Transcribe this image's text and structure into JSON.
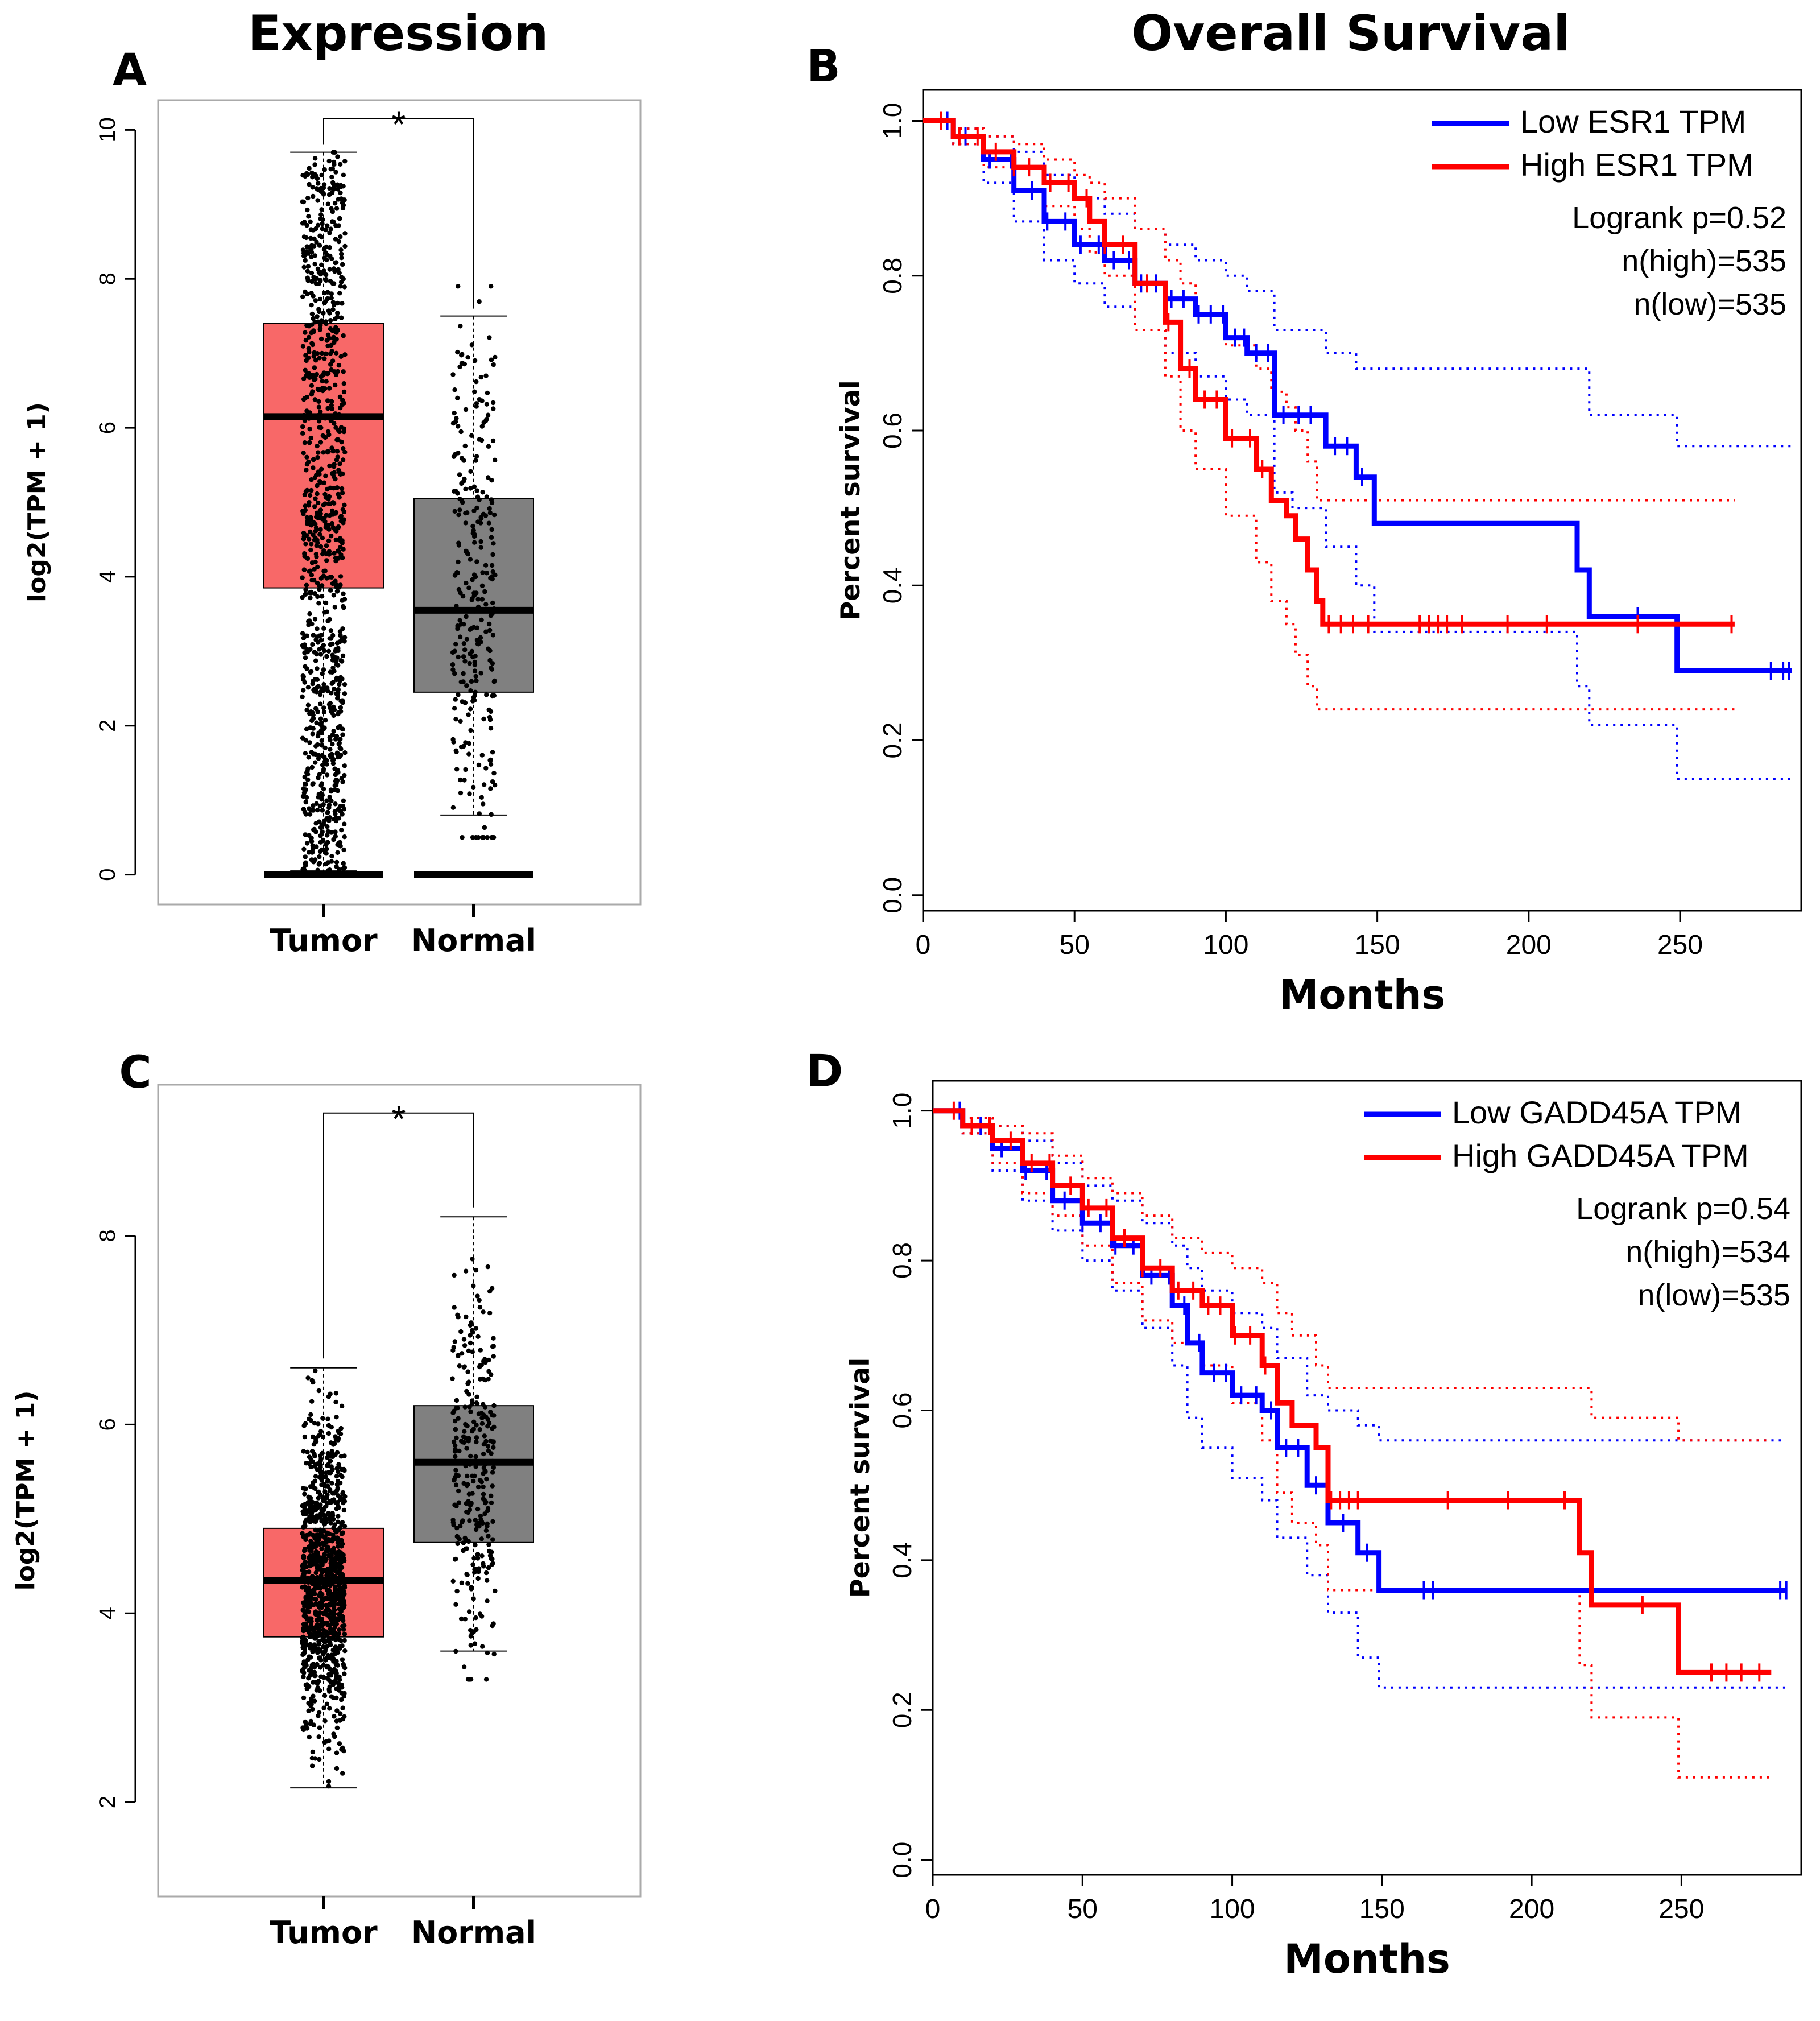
{
  "titles": {
    "expression": "Expression",
    "overall_survival": "Overall Survival"
  },
  "panel_labels": {
    "a": "A",
    "b": "B",
    "c": "C",
    "d": "D"
  },
  "colors": {
    "tumor_box": "#f86868",
    "normal_box": "#808080",
    "low_line": "#0000ff",
    "high_line": "#ff0000",
    "significance": "#ff0000"
  },
  "chart_data": [
    {
      "id": "A",
      "type": "box",
      "title": "Expression",
      "ylabel": "log2(TPM + 1)",
      "ylim": [
        -0.4,
        10.4
      ],
      "yticks": [
        "0",
        "2",
        "4",
        "6",
        "8",
        "10"
      ],
      "categories": [
        "Tumor",
        "Normal"
      ],
      "boxes": [
        {
          "name": "Tumor",
          "q1": 3.85,
          "median": 6.15,
          "q3": 7.4,
          "whisker_low": 0.05,
          "whisker_high": 9.7,
          "n_points": 1000
        },
        {
          "name": "Normal",
          "q1": 2.45,
          "median": 3.55,
          "q3": 5.05,
          "whisker_low": 0.8,
          "whisker_high": 7.5,
          "n_points": 290
        }
      ],
      "zero_bar": true,
      "bracket_y": 10.15,
      "significance": "*"
    },
    {
      "id": "B",
      "type": "line",
      "title": "Overall Survival",
      "xlabel": "Months",
      "ylabel": "Percent survival",
      "xlim": [
        0,
        290
      ],
      "ylim": [
        -0.02,
        1.04
      ],
      "xticks": [
        "0",
        "50",
        "100",
        "150",
        "200",
        "250"
      ],
      "yticks": [
        "0.0",
        "0.2",
        "0.4",
        "0.6",
        "0.8",
        "1.0"
      ],
      "legend": {
        "location": "top-right",
        "entries": [
          "Low ESR1 TPM",
          "High ESR1 TPM"
        ],
        "stats": [
          "Logrank p=0.52",
          "n(high)=535",
          "n(low)=535"
        ]
      },
      "series": [
        {
          "name": "Low ESR1 TPM",
          "color": "blue",
          "x": [
            0,
            10,
            20,
            30,
            40,
            50,
            60,
            70,
            80,
            90,
            100,
            107,
            116,
            122,
            133,
            143,
            149,
            190,
            216,
            220,
            235,
            249,
            270,
            287
          ],
          "y": [
            1.0,
            0.98,
            0.95,
            0.91,
            0.87,
            0.84,
            0.82,
            0.79,
            0.77,
            0.75,
            0.72,
            0.7,
            0.62,
            0.62,
            0.58,
            0.54,
            0.48,
            0.48,
            0.42,
            0.36,
            0.36,
            0.29,
            0.29,
            0.29
          ],
          "upper": [
            1.0,
            0.99,
            0.98,
            0.96,
            0.93,
            0.9,
            0.88,
            0.86,
            0.84,
            0.82,
            0.8,
            0.78,
            0.73,
            0.73,
            0.7,
            0.68,
            0.68,
            0.68,
            0.68,
            0.62,
            0.62,
            0.58,
            0.58,
            0.58
          ],
          "lower": [
            1.0,
            0.97,
            0.92,
            0.87,
            0.82,
            0.79,
            0.76,
            0.73,
            0.7,
            0.67,
            0.64,
            0.62,
            0.52,
            0.5,
            0.45,
            0.4,
            0.34,
            0.34,
            0.27,
            0.22,
            0.22,
            0.15,
            0.15,
            0.15
          ],
          "censor_x": [
            8,
            14,
            22,
            29,
            36,
            41,
            47,
            52,
            58,
            63,
            68,
            72,
            77,
            82,
            86,
            91,
            95,
            99,
            103,
            106,
            110,
            114,
            119,
            124,
            128,
            136,
            140,
            145,
            236,
            280,
            284,
            286
          ]
        },
        {
          "name": "High ESR1 TPM",
          "color": "red",
          "x": [
            0,
            10,
            20,
            30,
            40,
            50,
            55,
            60,
            70,
            80,
            85,
            90,
            100,
            110,
            115,
            120,
            123,
            127,
            130,
            132,
            150,
            200,
            250,
            268
          ],
          "y": [
            1.0,
            0.98,
            0.96,
            0.94,
            0.92,
            0.9,
            0.87,
            0.84,
            0.79,
            0.74,
            0.68,
            0.64,
            0.59,
            0.55,
            0.51,
            0.49,
            0.46,
            0.42,
            0.38,
            0.35,
            0.35,
            0.35,
            0.35,
            0.35
          ],
          "upper": [
            1.0,
            0.99,
            0.98,
            0.97,
            0.95,
            0.93,
            0.92,
            0.9,
            0.86,
            0.82,
            0.79,
            0.75,
            0.71,
            0.68,
            0.65,
            0.63,
            0.6,
            0.56,
            0.51,
            0.51,
            0.51,
            0.51,
            0.51,
            0.51
          ],
          "lower": [
            1.0,
            0.97,
            0.94,
            0.91,
            0.89,
            0.86,
            0.83,
            0.8,
            0.73,
            0.67,
            0.6,
            0.55,
            0.49,
            0.43,
            0.38,
            0.35,
            0.31,
            0.27,
            0.24,
            0.24,
            0.24,
            0.24,
            0.24,
            0.24
          ],
          "censor_x": [
            6,
            12,
            18,
            24,
            30,
            35,
            42,
            48,
            54,
            60,
            66,
            74,
            81,
            88,
            93,
            97,
            102,
            108,
            112,
            134,
            138,
            142,
            147,
            164,
            167,
            170,
            173,
            178,
            193,
            206,
            236,
            267
          ]
        }
      ]
    },
    {
      "id": "C",
      "type": "box",
      "title": "",
      "ylabel": "log2(TPM + 1)",
      "ylim": [
        1.0,
        9.6
      ],
      "yticks": [
        "2",
        "4",
        "6",
        "8"
      ],
      "categories": [
        "Tumor",
        "Normal"
      ],
      "boxes": [
        {
          "name": "Tumor",
          "q1": 3.75,
          "median": 4.35,
          "q3": 4.9,
          "whisker_low": 2.15,
          "whisker_high": 6.6,
          "n_points": 1000
        },
        {
          "name": "Normal",
          "q1": 4.75,
          "median": 5.6,
          "q3": 6.2,
          "whisker_low": 3.6,
          "whisker_high": 8.2,
          "n_points": 290
        }
      ],
      "zero_bar": false,
      "bracket_y": 9.3,
      "significance": "*"
    },
    {
      "id": "D",
      "type": "line",
      "title": "",
      "xlabel": "Months",
      "ylabel": "Percent survival",
      "xlim": [
        0,
        290
      ],
      "ylim": [
        -0.02,
        1.04
      ],
      "xticks": [
        "0",
        "50",
        "100",
        "150",
        "200",
        "250"
      ],
      "yticks": [
        "0.0",
        "0.2",
        "0.4",
        "0.6",
        "0.8",
        "1.0"
      ],
      "legend": {
        "location": "top-right",
        "entries": [
          "Low GADD45A TPM",
          "High GADD45A TPM"
        ],
        "stats": [
          "Logrank p=0.54",
          "n(high)=534",
          "n(low)=535"
        ]
      },
      "series": [
        {
          "name": "Low GADD45A TPM",
          "color": "blue",
          "x": [
            0,
            10,
            20,
            30,
            40,
            50,
            60,
            70,
            80,
            85,
            90,
            100,
            110,
            115,
            125,
            132,
            142,
            149,
            200,
            285
          ],
          "y": [
            1.0,
            0.98,
            0.95,
            0.92,
            0.88,
            0.85,
            0.82,
            0.78,
            0.74,
            0.69,
            0.65,
            0.62,
            0.6,
            0.55,
            0.5,
            0.45,
            0.41,
            0.36,
            0.36,
            0.36
          ],
          "upper": [
            1.0,
            0.99,
            0.98,
            0.96,
            0.93,
            0.9,
            0.88,
            0.85,
            0.82,
            0.79,
            0.76,
            0.73,
            0.71,
            0.67,
            0.62,
            0.6,
            0.58,
            0.56,
            0.56,
            0.56
          ],
          "lower": [
            1.0,
            0.97,
            0.92,
            0.88,
            0.84,
            0.8,
            0.76,
            0.71,
            0.66,
            0.59,
            0.55,
            0.51,
            0.48,
            0.43,
            0.38,
            0.33,
            0.27,
            0.23,
            0.23,
            0.23
          ],
          "censor_x": [
            9,
            16,
            23,
            31,
            38,
            44,
            50,
            56,
            61,
            67,
            73,
            79,
            84,
            89,
            94,
            98,
            103,
            108,
            113,
            118,
            122,
            128,
            137,
            145,
            164,
            167,
            283,
            285
          ]
        },
        {
          "name": "High GADD45A TPM",
          "color": "red",
          "x": [
            0,
            10,
            20,
            30,
            40,
            50,
            60,
            70,
            80,
            90,
            100,
            110,
            115,
            120,
            128,
            132,
            150,
            200,
            216,
            220,
            240,
            249,
            280
          ],
          "y": [
            1.0,
            0.98,
            0.96,
            0.93,
            0.9,
            0.87,
            0.83,
            0.79,
            0.76,
            0.74,
            0.7,
            0.66,
            0.61,
            0.58,
            0.55,
            0.48,
            0.48,
            0.48,
            0.41,
            0.34,
            0.34,
            0.25,
            0.25
          ],
          "upper": [
            1.0,
            0.99,
            0.98,
            0.97,
            0.94,
            0.91,
            0.89,
            0.86,
            0.83,
            0.81,
            0.79,
            0.77,
            0.73,
            0.7,
            0.66,
            0.63,
            0.63,
            0.63,
            0.63,
            0.59,
            0.59,
            0.56,
            0.56
          ],
          "lower": [
            1.0,
            0.97,
            0.93,
            0.89,
            0.86,
            0.82,
            0.77,
            0.72,
            0.69,
            0.66,
            0.61,
            0.56,
            0.49,
            0.45,
            0.42,
            0.36,
            0.36,
            0.36,
            0.26,
            0.19,
            0.19,
            0.11,
            0.11
          ],
          "censor_x": [
            7,
            13,
            19,
            26,
            33,
            39,
            46,
            52,
            58,
            64,
            70,
            76,
            82,
            87,
            92,
            96,
            101,
            106,
            111,
            133,
            136,
            139,
            142,
            172,
            192,
            211,
            237,
            260,
            265,
            270,
            276
          ]
        }
      ]
    }
  ]
}
